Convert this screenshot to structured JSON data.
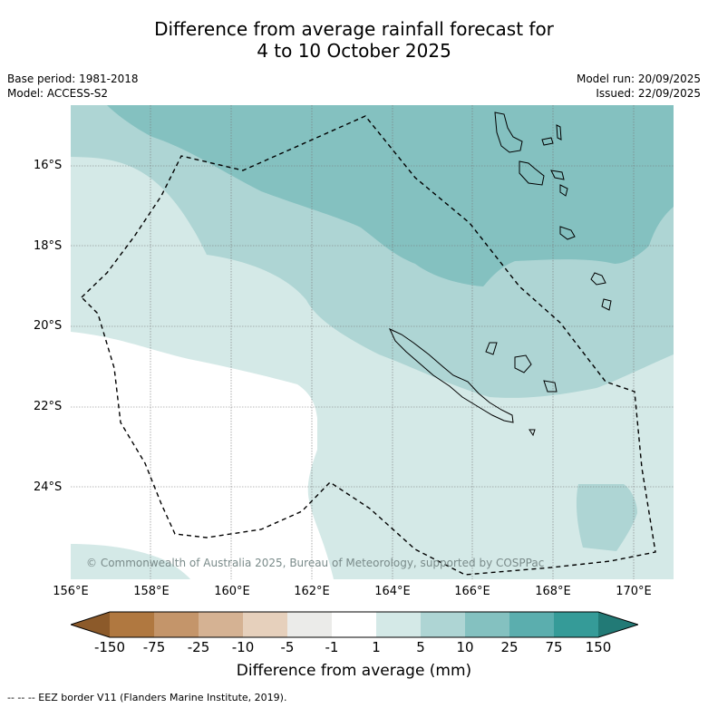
{
  "title": {
    "line1": "Difference from average rainfall forecast for",
    "line2": "4 to 10 October 2025"
  },
  "meta": {
    "base_period": "Base period: 1981-2018",
    "model": "Model: ACCESS-S2",
    "model_run": "Model run: 20/09/2025",
    "issued": "Issued: 22/09/2025"
  },
  "axes": {
    "lat_labels": [
      "16°S",
      "18°S",
      "20°S",
      "22°S",
      "24°S"
    ],
    "lon_labels": [
      "156°E",
      "158°E",
      "160°E",
      "162°E",
      "164°E",
      "166°E",
      "168°E",
      "170°E"
    ]
  },
  "copyright": "© Commonwealth of Australia 2025, Bureau of Meteorology, supported by COSPPac",
  "colorbar": {
    "title": "Difference from average (mm)",
    "ticks": [
      "-150",
      "-75",
      "-25",
      "-10",
      "-5",
      "-1",
      "1",
      "5",
      "10",
      "25",
      "75",
      "150"
    ],
    "colors": [
      "#8c5a2a",
      "#b07840",
      "#c4956a",
      "#d5b293",
      "#e6d0bc",
      "#ebebe9",
      "#ffffff",
      "#d4e9e7",
      "#aed5d4",
      "#84c1c0",
      "#5baeae",
      "#359b98",
      "#227a76"
    ]
  },
  "footnote": "--  --  -- EEZ border V11 (Flanders Marine Institute, 2019)."
}
